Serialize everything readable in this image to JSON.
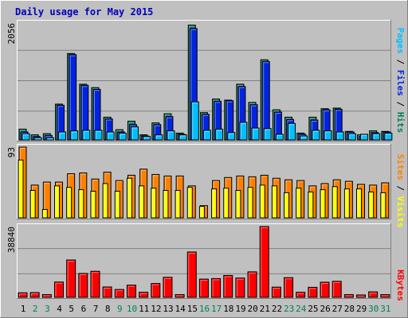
{
  "title": "Daily usage for May 2015",
  "days": [
    "1",
    "2",
    "3",
    "4",
    "5",
    "6",
    "7",
    "8",
    "9",
    "10",
    "11",
    "12",
    "13",
    "14",
    "15",
    "16",
    "17",
    "18",
    "19",
    "20",
    "21",
    "22",
    "23",
    "24",
    "25",
    "26",
    "27",
    "28",
    "29",
    "30",
    "31"
  ],
  "weekend_days": [
    "2",
    "3",
    "9",
    "10",
    "16",
    "17",
    "23",
    "24",
    "30",
    "31"
  ],
  "colors": {
    "background": "#c0c0c0",
    "plot_background": "#c0c0c0",
    "grid": "#808080",
    "title": "#0000c0",
    "hits": "#00805c",
    "files": "#0024e0",
    "pages": "#00c0ff",
    "visits": "#ff8000",
    "sites": "#ffff00",
    "kbytes": "#ff0000",
    "weekday_label": "#000000",
    "weekend_label": "#00805c"
  },
  "chart_data": [
    {
      "type": "bar",
      "panel": "hits-files-pages",
      "max_label": "2056",
      "ylim": [
        0,
        2056
      ],
      "side_label": {
        "pages": "Pages",
        "files": "Files",
        "hits": "Hits",
        "separator": " / "
      },
      "series": [
        {
          "name": "Hits",
          "values": [
            190,
            90,
            110,
            630,
            1520,
            980,
            920,
            400,
            180,
            330,
            90,
            300,
            460,
            120,
            2020,
            480,
            720,
            700,
            980,
            660,
            1410,
            530,
            400,
            120,
            400,
            550,
            560,
            150,
            90,
            160,
            150
          ]
        },
        {
          "name": "Files",
          "values": [
            140,
            60,
            80,
            610,
            1500,
            960,
            890,
            370,
            140,
            270,
            70,
            270,
            410,
            100,
            1960,
            450,
            680,
            690,
            940,
            620,
            1380,
            490,
            360,
            100,
            350,
            530,
            540,
            140,
            60,
            130,
            140
          ]
        },
        {
          "name": "Pages",
          "values": [
            110,
            40,
            40,
            140,
            160,
            170,
            170,
            140,
            120,
            230,
            60,
            90,
            160,
            90,
            670,
            170,
            190,
            130,
            310,
            210,
            200,
            100,
            290,
            70,
            170,
            160,
            140,
            110,
            100,
            110,
            120
          ]
        }
      ]
    },
    {
      "type": "bar",
      "panel": "visits-sites",
      "max_label": "93",
      "ylim": [
        0,
        93
      ],
      "side_label": {
        "sites": "Sites",
        "visits": "Visits",
        "separator": " / "
      },
      "series": [
        {
          "name": "Visits",
          "values": [
            93,
            43,
            47,
            47,
            58,
            59,
            51,
            60,
            49,
            56,
            64,
            57,
            55,
            55,
            42,
            16,
            49,
            53,
            55,
            54,
            56,
            52,
            50,
            49,
            42,
            45,
            50,
            48,
            44,
            43,
            46
          ]
        },
        {
          "name": "Sites",
          "values": [
            76,
            36,
            11,
            42,
            40,
            37,
            35,
            45,
            35,
            52,
            42,
            39,
            36,
            36,
            40,
            15,
            38,
            39,
            36,
            40,
            43,
            42,
            33,
            39,
            34,
            37,
            41,
            38,
            38,
            34,
            33
          ]
        }
      ]
    },
    {
      "type": "bar",
      "panel": "kbytes",
      "max_label": "38840",
      "ylim": [
        0,
        38840
      ],
      "side_label": {
        "kbytes": "KBytes"
      },
      "series": [
        {
          "name": "KBytes",
          "values": [
            2500,
            2600,
            1500,
            8400,
            20500,
            13100,
            14300,
            5700,
            4300,
            6700,
            2800,
            7600,
            11000,
            1500,
            24900,
            10000,
            10300,
            12000,
            10600,
            14000,
            38840,
            5600,
            10800,
            2800,
            5500,
            8300,
            8800,
            1500,
            1300,
            3000,
            1500
          ]
        }
      ]
    }
  ]
}
